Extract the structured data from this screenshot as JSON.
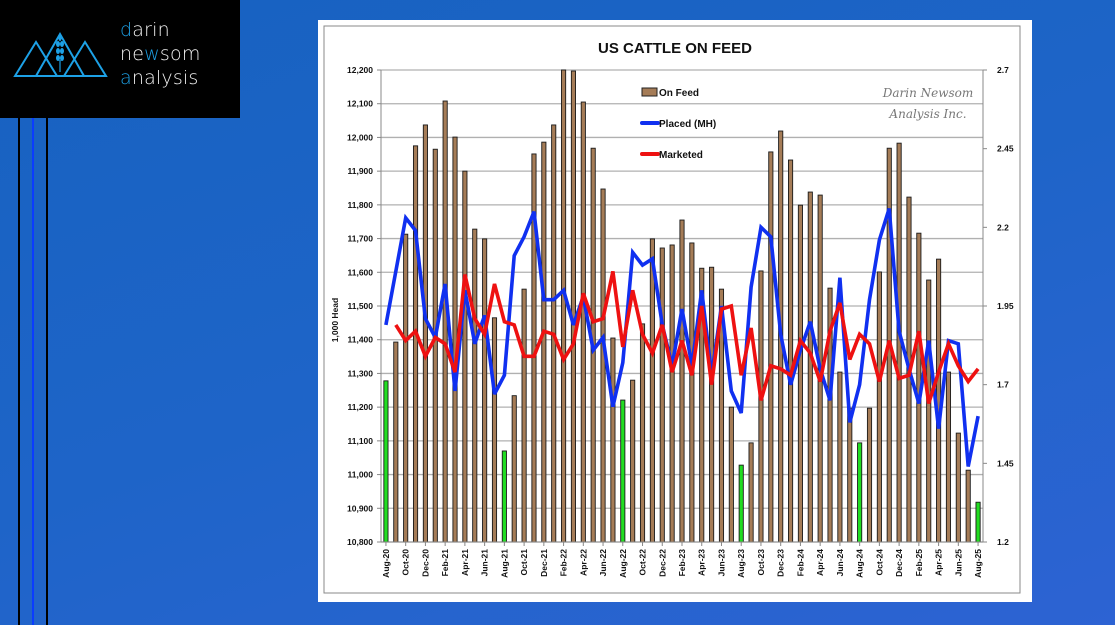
{
  "brand": {
    "line1_accent": "d",
    "line1_rest": "arin",
    "line2_a": "ne",
    "line2_accent": "w",
    "line2_b": "som",
    "line3_accent": "a",
    "line3_rest": "nalysis",
    "icon": "mountain-wheat-logo-icon",
    "accent_color": "#1da1e6"
  },
  "chart_data": {
    "type": "bar",
    "title": "US CATTLE ON FEED",
    "ylabel": "1,000 Head",
    "ylabel_right": "",
    "xlabel": "",
    "ylim": [
      10800,
      12200
    ],
    "ylim_right": [
      1.2,
      2.7
    ],
    "yticks": [
      "12,200",
      "12,100",
      "12,000",
      "11,900",
      "11,800",
      "11,700",
      "11,600",
      "11,500",
      "11,400",
      "11,300",
      "11,200",
      "11,100",
      "11,000",
      "10,900",
      "10,800"
    ],
    "yticks_right": [
      "2.7",
      "2.45",
      "2.2",
      "1.95",
      "1.7",
      "1.45",
      "1.2"
    ],
    "grid": true,
    "legend_position": "top-center",
    "watermark": [
      "Darin Newsom",
      "Analysis Inc."
    ],
    "x": [
      "Aug-20",
      "Sep-20",
      "Oct-20",
      "Nov-20",
      "Dec-20",
      "Jan-21",
      "Feb-21",
      "Mar-21",
      "Apr-21",
      "May-21",
      "Jun-21",
      "Jul-21",
      "Aug-21",
      "Sep-21",
      "Oct-21",
      "Nov-21",
      "Dec-21",
      "Jan-22",
      "Feb-22",
      "Mar-22",
      "Apr-22",
      "May-22",
      "Jun-22",
      "Jul-22",
      "Aug-22",
      "Sep-22",
      "Oct-22",
      "Nov-22",
      "Dec-22",
      "Jan-23",
      "Feb-23",
      "Mar-23",
      "Apr-23",
      "May-23",
      "Jun-23",
      "Jul-23",
      "Aug-23",
      "Sep-23",
      "Oct-23",
      "Nov-23",
      "Dec-23",
      "Jan-24",
      "Feb-24",
      "Mar-24",
      "Apr-24",
      "May-24",
      "Jun-24",
      "Jul-24",
      "Aug-24",
      "Sep-24",
      "Oct-24",
      "Nov-24",
      "Dec-24",
      "Jan-25",
      "Feb-25",
      "Mar-25",
      "Apr-25",
      "May-25",
      "Jun-25",
      "Jul-25",
      "Aug-25"
    ],
    "xtick_labels": [
      "Aug-20",
      "Oct-20",
      "Dec-20",
      "Feb-21",
      "Apr-21",
      "Jun-21",
      "Aug-21",
      "Oct-21",
      "Dec-21",
      "Feb-22",
      "Apr-22",
      "Jun-22",
      "Aug-22",
      "Oct-22",
      "Dec-22",
      "Feb-23",
      "Apr-23",
      "Jun-23",
      "Aug-23",
      "Oct-23",
      "Dec-23",
      "Feb-24",
      "Apr-24",
      "Jun-24",
      "Aug-24",
      "Oct-24",
      "Dec-24",
      "Feb-25",
      "Apr-25",
      "Jun-25",
      "Aug-25"
    ],
    "series": [
      {
        "name": "On Feed",
        "type": "bar",
        "axis": "left",
        "color": "#a57c57",
        "highlight_color": "#22dd22",
        "highlight_month": "Aug",
        "values": [
          11278,
          11393,
          11713,
          11975,
          12037,
          11965,
          12108,
          12001,
          11900,
          11728,
          11699,
          11465,
          11070,
          11234,
          11550,
          11951,
          11986,
          12037,
          12200,
          12197,
          12105,
          11968,
          11847,
          11405,
          11221,
          11280,
          11447,
          11699,
          11672,
          11681,
          11755,
          11687,
          11612,
          11615,
          11550,
          11200,
          11028,
          11094,
          11604,
          11957,
          12019,
          11933,
          11799,
          11838,
          11829,
          11553,
          11304,
          11197,
          11094,
          11197,
          11601,
          11968,
          11983,
          11823,
          11716,
          11577,
          11639,
          11304,
          11123,
          11013,
          10918
        ]
      },
      {
        "name": "Placed (MH)",
        "type": "line",
        "axis": "right",
        "color": "#1030f0",
        "values": [
          1.89,
          2.06,
          2.23,
          2.19,
          1.91,
          1.85,
          2.02,
          1.68,
          2.0,
          1.83,
          1.92,
          1.67,
          1.73,
          2.11,
          2.17,
          2.25,
          1.97,
          1.97,
          2.0,
          1.89,
          1.98,
          1.81,
          1.85,
          1.63,
          1.77,
          2.12,
          2.08,
          2.1,
          1.89,
          1.76,
          1.94,
          1.76,
          2.0,
          1.73,
          1.95,
          1.68,
          1.61,
          2.01,
          2.2,
          2.17,
          1.86,
          1.7,
          1.81,
          1.9,
          1.75,
          1.65,
          2.04,
          1.58,
          1.7,
          1.97,
          2.16,
          2.26,
          1.87,
          1.75,
          1.64,
          1.84,
          1.56,
          1.84,
          1.83,
          1.44,
          1.6
        ]
      },
      {
        "name": "Marketed",
        "type": "line",
        "axis": "right",
        "color": "#ee1111",
        "values": [
          null,
          1.89,
          1.84,
          1.87,
          1.79,
          1.85,
          1.83,
          1.74,
          2.05,
          1.91,
          1.86,
          2.02,
          1.9,
          1.89,
          1.79,
          1.79,
          1.87,
          1.86,
          1.78,
          1.83,
          1.99,
          1.9,
          1.91,
          2.06,
          1.82,
          2.0,
          1.86,
          1.8,
          1.89,
          1.74,
          1.84,
          1.73,
          1.95,
          1.7,
          1.94,
          1.95,
          1.73,
          1.88,
          1.65,
          1.76,
          1.75,
          1.73,
          1.84,
          1.8,
          1.71,
          1.87,
          1.96,
          1.78,
          1.86,
          1.83,
          1.71,
          1.84,
          1.72,
          1.73,
          1.87,
          1.64,
          1.74,
          1.83,
          1.76,
          1.71,
          1.75
        ]
      }
    ]
  }
}
